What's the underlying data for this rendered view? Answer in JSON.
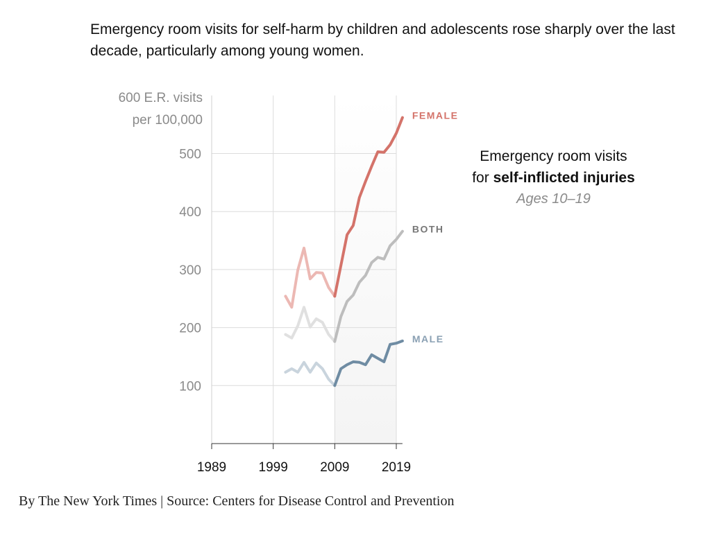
{
  "headline": "Emergency room visits for self-harm by children and adolescents rose sharply over the last decade, particularly among young women.",
  "annotation": {
    "line1": "Emergency room visits",
    "line2_prefix": "for ",
    "line2_bold": "self-inflicted injuries",
    "subtitle": "Ages 10–19"
  },
  "credit": "By The New York Times | Source: Centers for Disease Control and Prevention",
  "chart_data": {
    "type": "line",
    "ylabel_top": [
      "600 E.R. visits",
      "per 100,000"
    ],
    "ylim": [
      0,
      600
    ],
    "yticks": [
      "100",
      "200",
      "300",
      "400",
      "500"
    ],
    "xlim": [
      1989,
      2020
    ],
    "xticks": [
      "1989",
      "1999",
      "2009",
      "2019"
    ],
    "highlight_range": [
      2009,
      2019
    ],
    "grid": true,
    "x": [
      2001,
      2002,
      2003,
      2004,
      2005,
      2006,
      2007,
      2008,
      2009,
      2010,
      2011,
      2012,
      2013,
      2014,
      2015,
      2016,
      2017,
      2018,
      2019,
      2020
    ],
    "series": [
      {
        "name": "FEMALE",
        "color": "#d4736a",
        "faded_color": "#ecb8b3",
        "values": [
          254,
          235,
          299,
          337,
          284,
          295,
          294,
          269,
          254,
          307,
          360,
          376,
          424,
          452,
          478,
          503,
          502,
          515,
          535,
          562
        ]
      },
      {
        "name": "BOTH",
        "color": "#bdbdbd",
        "faded_color": "#e0e0e0",
        "label_color": "#777777",
        "values": [
          188,
          182,
          203,
          235,
          201,
          215,
          209,
          188,
          176,
          219,
          245,
          256,
          278,
          290,
          312,
          321,
          318,
          341,
          352,
          366
        ]
      },
      {
        "name": "MALE",
        "color": "#6f8ca3",
        "faded_color": "#c9d4dd",
        "label_color": "#8aa0b3",
        "values": [
          123,
          129,
          123,
          140,
          123,
          139,
          129,
          111,
          100,
          129,
          136,
          141,
          140,
          136,
          153,
          147,
          141,
          171,
          173,
          177
        ]
      }
    ]
  }
}
